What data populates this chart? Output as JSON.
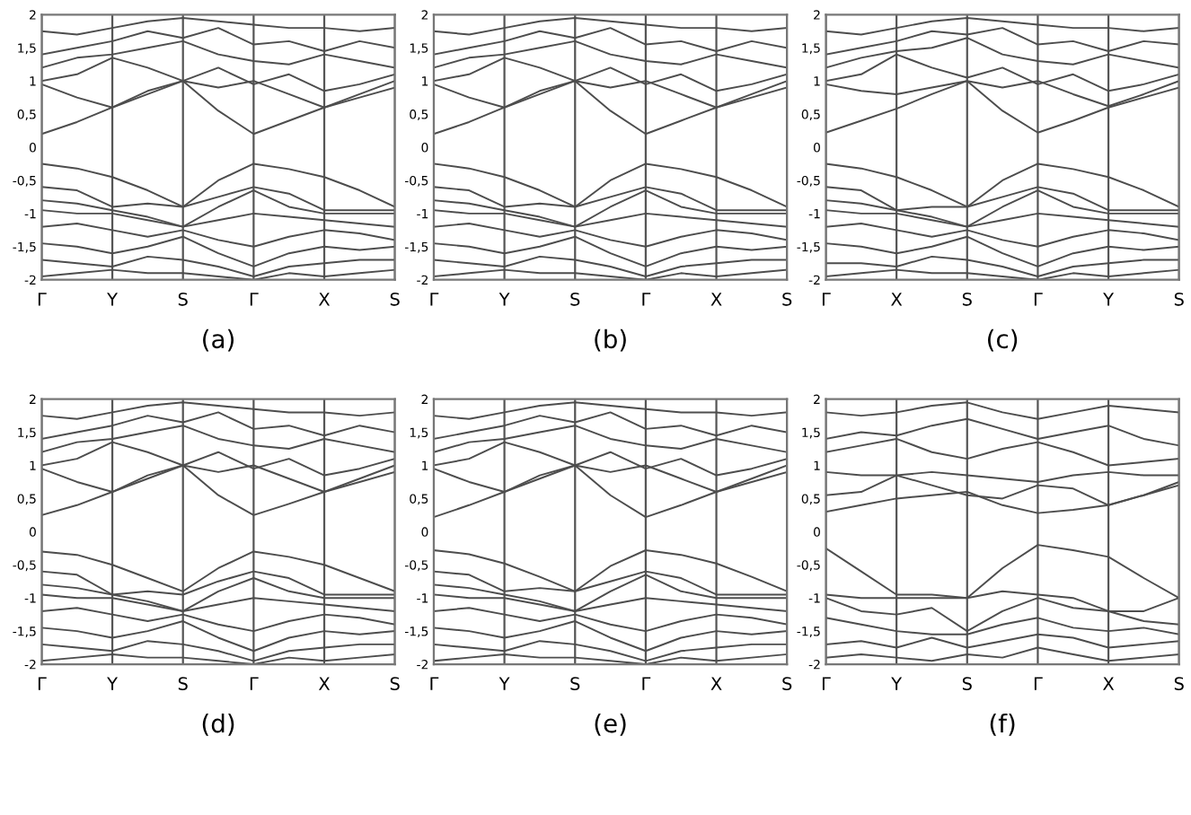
{
  "chart_data": [
    {
      "type": "line",
      "xlabel": "(a)",
      "categories": [
        "Γ",
        null,
        "Y",
        null,
        "S",
        null,
        "Γ",
        null,
        "X",
        null,
        "S"
      ],
      "ylim": [
        -2,
        2
      ],
      "grid": "x",
      "yticks": [
        -2,
        {
          "value": -1.5,
          "label": "-1,5"
        },
        -1,
        {
          "value": -0.5,
          "label": "-0,5"
        },
        0,
        {
          "value": 0.5,
          "label": "0,5"
        },
        1,
        {
          "value": 1.5,
          "label": "1,5"
        },
        2
      ],
      "series": [
        {
          "color": "#4d4d4d",
          "values": [
            0.2,
            0.38,
            0.6,
            0.8,
            1.0,
            0.55,
            0.2,
            0.4,
            0.6,
            0.75,
            0.9
          ]
        },
        {
          "color": "#4d4d4d",
          "values": [
            0.95,
            0.75,
            0.6,
            0.85,
            1.0,
            0.9,
            1.0,
            0.8,
            0.6,
            0.8,
            1.0
          ]
        },
        {
          "color": "#4d4d4d",
          "values": [
            1.0,
            1.1,
            1.35,
            1.2,
            1.0,
            1.2,
            0.95,
            1.1,
            0.85,
            0.95,
            1.1
          ]
        },
        {
          "color": "#4d4d4d",
          "values": [
            1.2,
            1.35,
            1.4,
            1.5,
            1.6,
            1.4,
            1.3,
            1.25,
            1.4,
            1.3,
            1.2
          ]
        },
        {
          "color": "#4d4d4d",
          "values": [
            1.4,
            1.5,
            1.6,
            1.75,
            1.65,
            1.8,
            1.55,
            1.6,
            1.45,
            1.6,
            1.5
          ]
        },
        {
          "color": "#4d4d4d",
          "values": [
            1.75,
            1.7,
            1.8,
            1.9,
            1.95,
            1.9,
            1.85,
            1.8,
            1.8,
            1.75,
            1.8
          ]
        },
        {
          "color": "#4d4d4d",
          "values": [
            -0.25,
            -0.32,
            -0.45,
            -0.65,
            -0.9,
            -0.5,
            -0.25,
            -0.33,
            -0.45,
            -0.65,
            -0.9
          ]
        },
        {
          "color": "#4d4d4d",
          "values": [
            -0.6,
            -0.65,
            -0.9,
            -0.85,
            -0.9,
            -0.75,
            -0.6,
            -0.7,
            -0.95,
            -0.95,
            -0.95
          ]
        },
        {
          "color": "#4d4d4d",
          "values": [
            -0.8,
            -0.85,
            -0.95,
            -1.05,
            -1.2,
            -0.9,
            -0.65,
            -0.9,
            -1.0,
            -1.0,
            -1.0
          ]
        },
        {
          "color": "#4d4d4d",
          "values": [
            -0.95,
            -1.0,
            -1.0,
            -1.1,
            -1.2,
            -1.1,
            -1.0,
            -1.05,
            -1.1,
            -1.15,
            -1.2
          ]
        },
        {
          "color": "#4d4d4d",
          "values": [
            -1.2,
            -1.15,
            -1.25,
            -1.35,
            -1.25,
            -1.4,
            -1.5,
            -1.35,
            -1.25,
            -1.3,
            -1.4
          ]
        },
        {
          "color": "#4d4d4d",
          "values": [
            -1.45,
            -1.5,
            -1.6,
            -1.5,
            -1.35,
            -1.6,
            -1.8,
            -1.6,
            -1.5,
            -1.55,
            -1.5
          ]
        },
        {
          "color": "#4d4d4d",
          "values": [
            -1.7,
            -1.75,
            -1.8,
            -1.65,
            -1.7,
            -1.8,
            -1.95,
            -1.8,
            -1.75,
            -1.7,
            -1.7
          ]
        },
        {
          "color": "#4d4d4d",
          "values": [
            -1.95,
            -1.9,
            -1.85,
            -1.9,
            -1.9,
            -1.95,
            -2.0,
            -1.9,
            -1.95,
            -1.9,
            -1.85
          ]
        }
      ]
    },
    {
      "type": "line",
      "xlabel": "(b)",
      "categories": [
        "Γ",
        null,
        "Y",
        null,
        "S",
        null,
        "Γ",
        null,
        "X",
        null,
        "S"
      ],
      "ylim": [
        -2,
        2
      ],
      "grid": "x",
      "yticks": [
        -2,
        {
          "value": -1.5,
          "label": "-1,5"
        },
        -1,
        {
          "value": -0.5,
          "label": "-0,5"
        },
        0,
        {
          "value": 0.5,
          "label": "0,5"
        },
        1,
        {
          "value": 1.5,
          "label": "1,5"
        },
        2
      ],
      "series": [
        {
          "color": "#4d4d4d",
          "values": [
            0.2,
            0.38,
            0.6,
            0.8,
            1.0,
            0.55,
            0.2,
            0.4,
            0.6,
            0.75,
            0.9
          ]
        },
        {
          "color": "#4d4d4d",
          "values": [
            0.95,
            0.75,
            0.6,
            0.85,
            1.0,
            0.9,
            1.0,
            0.8,
            0.6,
            0.8,
            1.0
          ]
        },
        {
          "color": "#4d4d4d",
          "values": [
            1.0,
            1.1,
            1.35,
            1.2,
            1.0,
            1.2,
            0.95,
            1.1,
            0.85,
            0.95,
            1.1
          ]
        },
        {
          "color": "#4d4d4d",
          "values": [
            1.2,
            1.35,
            1.4,
            1.5,
            1.6,
            1.4,
            1.3,
            1.25,
            1.4,
            1.3,
            1.2
          ]
        },
        {
          "color": "#4d4d4d",
          "values": [
            1.4,
            1.5,
            1.6,
            1.75,
            1.65,
            1.8,
            1.55,
            1.6,
            1.45,
            1.6,
            1.5
          ]
        },
        {
          "color": "#4d4d4d",
          "values": [
            1.75,
            1.7,
            1.8,
            1.9,
            1.95,
            1.9,
            1.85,
            1.8,
            1.8,
            1.75,
            1.8
          ]
        },
        {
          "color": "#4d4d4d",
          "values": [
            -0.25,
            -0.32,
            -0.45,
            -0.65,
            -0.9,
            -0.5,
            -0.25,
            -0.33,
            -0.45,
            -0.65,
            -0.9
          ]
        },
        {
          "color": "#4d4d4d",
          "values": [
            -0.6,
            -0.65,
            -0.9,
            -0.85,
            -0.9,
            -0.75,
            -0.6,
            -0.7,
            -0.95,
            -0.95,
            -0.95
          ]
        },
        {
          "color": "#4d4d4d",
          "values": [
            -0.8,
            -0.85,
            -0.95,
            -1.05,
            -1.2,
            -0.9,
            -0.65,
            -0.9,
            -1.0,
            -1.0,
            -1.0
          ]
        },
        {
          "color": "#4d4d4d",
          "values": [
            -0.95,
            -1.0,
            -1.0,
            -1.1,
            -1.2,
            -1.1,
            -1.0,
            -1.05,
            -1.1,
            -1.15,
            -1.2
          ]
        },
        {
          "color": "#4d4d4d",
          "values": [
            -1.2,
            -1.15,
            -1.25,
            -1.35,
            -1.25,
            -1.4,
            -1.5,
            -1.35,
            -1.25,
            -1.3,
            -1.4
          ]
        },
        {
          "color": "#4d4d4d",
          "values": [
            -1.45,
            -1.5,
            -1.6,
            -1.5,
            -1.35,
            -1.6,
            -1.8,
            -1.6,
            -1.5,
            -1.55,
            -1.5
          ]
        },
        {
          "color": "#4d4d4d",
          "values": [
            -1.7,
            -1.75,
            -1.8,
            -1.65,
            -1.7,
            -1.8,
            -1.95,
            -1.8,
            -1.75,
            -1.7,
            -1.7
          ]
        },
        {
          "color": "#4d4d4d",
          "values": [
            -1.95,
            -1.9,
            -1.85,
            -1.9,
            -1.9,
            -1.95,
            -2.0,
            -1.9,
            -1.95,
            -1.9,
            -1.85
          ]
        }
      ]
    },
    {
      "type": "line",
      "xlabel": "(c)",
      "categories": [
        "Γ",
        null,
        "X",
        null,
        "S",
        null,
        "Γ",
        null,
        "Y",
        null,
        "S"
      ],
      "ylim": [
        -2,
        2
      ],
      "grid": "x",
      "yticks": [
        -2,
        {
          "value": -1.5,
          "label": "-1,5"
        },
        -1,
        {
          "value": -0.5,
          "label": "-0,5"
        },
        0,
        {
          "value": 0.5,
          "label": "0,5"
        },
        1,
        {
          "value": 1.5,
          "label": "1,5"
        },
        2
      ],
      "series": [
        {
          "color": "#4d4d4d",
          "values": [
            0.22,
            0.4,
            0.58,
            0.8,
            1.0,
            0.55,
            0.22,
            0.4,
            0.6,
            0.75,
            0.9
          ]
        },
        {
          "color": "#4d4d4d",
          "values": [
            0.95,
            0.85,
            0.8,
            0.9,
            1.0,
            0.9,
            1.0,
            0.8,
            0.62,
            0.8,
            1.0
          ]
        },
        {
          "color": "#4d4d4d",
          "values": [
            1.0,
            1.1,
            1.4,
            1.2,
            1.05,
            1.2,
            0.95,
            1.1,
            0.85,
            0.95,
            1.1
          ]
        },
        {
          "color": "#4d4d4d",
          "values": [
            1.2,
            1.35,
            1.45,
            1.5,
            1.65,
            1.4,
            1.3,
            1.25,
            1.4,
            1.3,
            1.2
          ]
        },
        {
          "color": "#4d4d4d",
          "values": [
            1.4,
            1.5,
            1.6,
            1.75,
            1.7,
            1.8,
            1.55,
            1.6,
            1.45,
            1.6,
            1.55
          ]
        },
        {
          "color": "#4d4d4d",
          "values": [
            1.75,
            1.7,
            1.8,
            1.9,
            1.95,
            1.9,
            1.85,
            1.8,
            1.8,
            1.75,
            1.8
          ]
        },
        {
          "color": "#4d4d4d",
          "values": [
            -0.25,
            -0.32,
            -0.45,
            -0.65,
            -0.9,
            -0.5,
            -0.25,
            -0.33,
            -0.45,
            -0.65,
            -0.9
          ]
        },
        {
          "color": "#4d4d4d",
          "values": [
            -0.6,
            -0.65,
            -0.95,
            -0.9,
            -0.9,
            -0.75,
            -0.6,
            -0.7,
            -0.95,
            -0.95,
            -0.95
          ]
        },
        {
          "color": "#4d4d4d",
          "values": [
            -0.8,
            -0.85,
            -0.95,
            -1.05,
            -1.2,
            -0.9,
            -0.65,
            -0.9,
            -1.0,
            -1.0,
            -1.0
          ]
        },
        {
          "color": "#4d4d4d",
          "values": [
            -0.95,
            -1.0,
            -1.0,
            -1.1,
            -1.2,
            -1.1,
            -1.0,
            -1.05,
            -1.1,
            -1.15,
            -1.2
          ]
        },
        {
          "color": "#4d4d4d",
          "values": [
            -1.2,
            -1.15,
            -1.25,
            -1.35,
            -1.25,
            -1.4,
            -1.5,
            -1.35,
            -1.25,
            -1.3,
            -1.4
          ]
        },
        {
          "color": "#4d4d4d",
          "values": [
            -1.45,
            -1.5,
            -1.6,
            -1.5,
            -1.35,
            -1.6,
            -1.8,
            -1.6,
            -1.5,
            -1.55,
            -1.5
          ]
        },
        {
          "color": "#4d4d4d",
          "values": [
            -1.75,
            -1.75,
            -1.8,
            -1.65,
            -1.7,
            -1.8,
            -1.95,
            -1.8,
            -1.75,
            -1.7,
            -1.7
          ]
        },
        {
          "color": "#4d4d4d",
          "values": [
            -1.95,
            -1.9,
            -1.85,
            -1.9,
            -1.9,
            -1.95,
            -2.0,
            -1.9,
            -1.95,
            -1.9,
            -1.85
          ]
        }
      ]
    },
    {
      "type": "line",
      "xlabel": "(d)",
      "categories": [
        "Γ",
        null,
        "Y",
        null,
        "S",
        null,
        "Γ",
        null,
        "X",
        null,
        "S"
      ],
      "ylim": [
        -2,
        2
      ],
      "grid": "x",
      "yticks": [
        -2,
        {
          "value": -1.5,
          "label": "-1,5"
        },
        -1,
        {
          "value": -0.5,
          "label": "-0,5"
        },
        0,
        {
          "value": 0.5,
          "label": "0,5"
        },
        1,
        {
          "value": 1.5,
          "label": "1,5"
        },
        2
      ],
      "series": [
        {
          "color": "#4d4d4d",
          "values": [
            0.25,
            0.4,
            0.6,
            0.8,
            1.0,
            0.55,
            0.25,
            0.42,
            0.6,
            0.75,
            0.9
          ]
        },
        {
          "color": "#4d4d4d",
          "values": [
            0.95,
            0.75,
            0.6,
            0.85,
            1.0,
            0.9,
            1.0,
            0.8,
            0.6,
            0.8,
            1.0
          ]
        },
        {
          "color": "#4d4d4d",
          "values": [
            1.0,
            1.1,
            1.35,
            1.2,
            1.0,
            1.2,
            0.95,
            1.1,
            0.85,
            0.95,
            1.1
          ]
        },
        {
          "color": "#4d4d4d",
          "values": [
            1.2,
            1.35,
            1.4,
            1.5,
            1.6,
            1.4,
            1.3,
            1.25,
            1.4,
            1.3,
            1.2
          ]
        },
        {
          "color": "#4d4d4d",
          "values": [
            1.4,
            1.5,
            1.6,
            1.75,
            1.65,
            1.8,
            1.55,
            1.6,
            1.45,
            1.6,
            1.5
          ]
        },
        {
          "color": "#4d4d4d",
          "values": [
            1.75,
            1.7,
            1.8,
            1.9,
            1.95,
            1.9,
            1.85,
            1.8,
            1.8,
            1.75,
            1.8
          ]
        },
        {
          "color": "#4d4d4d",
          "values": [
            -0.3,
            -0.35,
            -0.5,
            -0.7,
            -0.9,
            -0.55,
            -0.3,
            -0.38,
            -0.5,
            -0.7,
            -0.9
          ]
        },
        {
          "color": "#4d4d4d",
          "values": [
            -0.6,
            -0.65,
            -0.95,
            -0.9,
            -0.95,
            -0.75,
            -0.6,
            -0.7,
            -0.95,
            -0.95,
            -0.95
          ]
        },
        {
          "color": "#4d4d4d",
          "values": [
            -0.8,
            -0.85,
            -0.95,
            -1.05,
            -1.2,
            -0.9,
            -0.7,
            -0.9,
            -1.0,
            -1.0,
            -1.0
          ]
        },
        {
          "color": "#4d4d4d",
          "values": [
            -0.95,
            -1.0,
            -1.0,
            -1.1,
            -1.2,
            -1.1,
            -1.0,
            -1.05,
            -1.1,
            -1.15,
            -1.2
          ]
        },
        {
          "color": "#4d4d4d",
          "values": [
            -1.2,
            -1.15,
            -1.25,
            -1.35,
            -1.25,
            -1.4,
            -1.5,
            -1.35,
            -1.25,
            -1.3,
            -1.4
          ]
        },
        {
          "color": "#4d4d4d",
          "values": [
            -1.45,
            -1.5,
            -1.6,
            -1.5,
            -1.35,
            -1.6,
            -1.8,
            -1.6,
            -1.5,
            -1.55,
            -1.5
          ]
        },
        {
          "color": "#4d4d4d",
          "values": [
            -1.7,
            -1.75,
            -1.8,
            -1.65,
            -1.7,
            -1.8,
            -1.95,
            -1.8,
            -1.75,
            -1.7,
            -1.7
          ]
        },
        {
          "color": "#4d4d4d",
          "values": [
            -1.95,
            -1.9,
            -1.85,
            -1.9,
            -1.9,
            -1.95,
            -2.0,
            -1.9,
            -1.95,
            -1.9,
            -1.85
          ]
        }
      ]
    },
    {
      "type": "line",
      "xlabel": "(e)",
      "categories": [
        "Γ",
        null,
        "Y",
        null,
        "S",
        null,
        "Γ",
        null,
        "X",
        null,
        "S"
      ],
      "ylim": [
        -2,
        2
      ],
      "grid": "x",
      "yticks": [
        -2,
        {
          "value": -1.5,
          "label": "-1,5"
        },
        -1,
        {
          "value": -0.5,
          "label": "-0,5"
        },
        0,
        {
          "value": 0.5,
          "label": "0,5"
        },
        1,
        {
          "value": 1.5,
          "label": "1,5"
        },
        2
      ],
      "series": [
        {
          "color": "#4d4d4d",
          "values": [
            0.22,
            0.4,
            0.6,
            0.8,
            1.0,
            0.55,
            0.22,
            0.4,
            0.6,
            0.75,
            0.9
          ]
        },
        {
          "color": "#4d4d4d",
          "values": [
            0.95,
            0.75,
            0.6,
            0.85,
            1.0,
            0.9,
            1.0,
            0.8,
            0.6,
            0.8,
            1.0
          ]
        },
        {
          "color": "#4d4d4d",
          "values": [
            1.0,
            1.1,
            1.35,
            1.2,
            1.0,
            1.2,
            0.95,
            1.1,
            0.85,
            0.95,
            1.1
          ]
        },
        {
          "color": "#4d4d4d",
          "values": [
            1.2,
            1.35,
            1.4,
            1.5,
            1.6,
            1.4,
            1.3,
            1.25,
            1.4,
            1.3,
            1.2
          ]
        },
        {
          "color": "#4d4d4d",
          "values": [
            1.4,
            1.5,
            1.6,
            1.75,
            1.65,
            1.8,
            1.55,
            1.6,
            1.45,
            1.6,
            1.5
          ]
        },
        {
          "color": "#4d4d4d",
          "values": [
            1.75,
            1.7,
            1.8,
            1.9,
            1.95,
            1.9,
            1.85,
            1.8,
            1.8,
            1.75,
            1.8
          ]
        },
        {
          "color": "#4d4d4d",
          "values": [
            -0.28,
            -0.34,
            -0.48,
            -0.68,
            -0.9,
            -0.52,
            -0.28,
            -0.35,
            -0.48,
            -0.68,
            -0.9
          ]
        },
        {
          "color": "#4d4d4d",
          "values": [
            -0.6,
            -0.65,
            -0.9,
            -0.85,
            -0.9,
            -0.75,
            -0.6,
            -0.7,
            -0.95,
            -0.95,
            -0.95
          ]
        },
        {
          "color": "#4d4d4d",
          "values": [
            -0.8,
            -0.85,
            -0.95,
            -1.05,
            -1.2,
            -0.9,
            -0.65,
            -0.9,
            -1.0,
            -1.0,
            -1.0
          ]
        },
        {
          "color": "#4d4d4d",
          "values": [
            -0.95,
            -1.0,
            -1.0,
            -1.1,
            -1.2,
            -1.1,
            -1.0,
            -1.05,
            -1.1,
            -1.15,
            -1.2
          ]
        },
        {
          "color": "#4d4d4d",
          "values": [
            -1.2,
            -1.15,
            -1.25,
            -1.35,
            -1.25,
            -1.4,
            -1.5,
            -1.35,
            -1.25,
            -1.3,
            -1.4
          ]
        },
        {
          "color": "#4d4d4d",
          "values": [
            -1.45,
            -1.5,
            -1.6,
            -1.5,
            -1.35,
            -1.6,
            -1.8,
            -1.6,
            -1.5,
            -1.55,
            -1.5
          ]
        },
        {
          "color": "#4d4d4d",
          "values": [
            -1.7,
            -1.75,
            -1.8,
            -1.65,
            -1.7,
            -1.8,
            -1.95,
            -1.8,
            -1.75,
            -1.7,
            -1.7
          ]
        },
        {
          "color": "#4d4d4d",
          "values": [
            -1.95,
            -1.9,
            -1.85,
            -1.9,
            -1.9,
            -1.95,
            -2.0,
            -1.9,
            -1.95,
            -1.9,
            -1.85
          ]
        }
      ]
    },
    {
      "type": "line",
      "xlabel": "(f)",
      "categories": [
        "Γ",
        null,
        "Y",
        null,
        "S",
        null,
        "Γ",
        null,
        "X",
        null,
        "S"
      ],
      "ylim": [
        -2,
        2
      ],
      "grid": "x",
      "yticks": [
        -2,
        {
          "value": -1.5,
          "label": "-1,5"
        },
        -1,
        {
          "value": -0.5,
          "label": "-0,5"
        },
        0,
        {
          "value": 0.5,
          "label": "0,5"
        },
        1,
        {
          "value": 1.5,
          "label": "1,5"
        },
        2
      ],
      "series": [
        {
          "color": "#4d4d4d",
          "values": [
            0.3,
            0.4,
            0.5,
            0.55,
            0.6,
            0.4,
            0.28,
            0.33,
            0.4,
            0.55,
            0.75
          ]
        },
        {
          "color": "#4d4d4d",
          "values": [
            0.55,
            0.6,
            0.85,
            0.7,
            0.55,
            0.5,
            0.7,
            0.65,
            0.4,
            0.55,
            0.7
          ]
        },
        {
          "color": "#4d4d4d",
          "values": [
            0.9,
            0.85,
            0.85,
            0.9,
            0.85,
            0.8,
            0.75,
            0.85,
            0.9,
            0.85,
            0.85
          ]
        },
        {
          "color": "#4d4d4d",
          "values": [
            1.2,
            1.3,
            1.4,
            1.2,
            1.1,
            1.25,
            1.35,
            1.2,
            1.0,
            1.05,
            1.1
          ]
        },
        {
          "color": "#4d4d4d",
          "values": [
            1.4,
            1.5,
            1.45,
            1.6,
            1.7,
            1.55,
            1.4,
            1.5,
            1.6,
            1.4,
            1.3
          ]
        },
        {
          "color": "#4d4d4d",
          "values": [
            1.8,
            1.75,
            1.8,
            1.9,
            1.95,
            1.8,
            1.7,
            1.8,
            1.9,
            1.85,
            1.8
          ]
        },
        {
          "color": "#4d4d4d",
          "values": [
            -0.25,
            -0.6,
            -0.95,
            -0.95,
            -1.0,
            -0.55,
            -0.2,
            -0.28,
            -0.38,
            -0.7,
            -1.0
          ]
        },
        {
          "color": "#4d4d4d",
          "values": [
            -0.95,
            -1.0,
            -1.0,
            -1.0,
            -1.0,
            -0.9,
            -0.95,
            -1.0,
            -1.2,
            -1.2,
            -1.0
          ]
        },
        {
          "color": "#4d4d4d",
          "values": [
            -1.0,
            -1.2,
            -1.25,
            -1.15,
            -1.5,
            -1.2,
            -1.0,
            -1.15,
            -1.2,
            -1.35,
            -1.4
          ]
        },
        {
          "color": "#4d4d4d",
          "values": [
            -1.3,
            -1.4,
            -1.5,
            -1.55,
            -1.55,
            -1.4,
            -1.3,
            -1.45,
            -1.5,
            -1.45,
            -1.55
          ]
        },
        {
          "color": "#4d4d4d",
          "values": [
            -1.7,
            -1.65,
            -1.75,
            -1.6,
            -1.75,
            -1.65,
            -1.55,
            -1.6,
            -1.75,
            -1.7,
            -1.65
          ]
        },
        {
          "color": "#4d4d4d",
          "values": [
            -1.9,
            -1.85,
            -1.9,
            -1.95,
            -1.85,
            -1.9,
            -1.75,
            -1.85,
            -1.95,
            -1.9,
            -1.85
          ]
        }
      ]
    }
  ]
}
